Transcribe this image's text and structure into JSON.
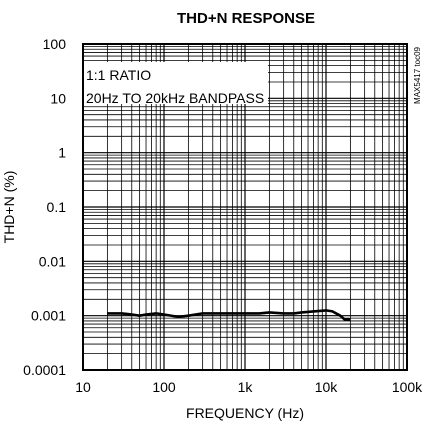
{
  "chart_data": {
    "type": "line",
    "title": "THD+N RESPONSE",
    "xlabel": "FREQUENCY (Hz)",
    "ylabel": "THD+N (%)",
    "x_scale": "log",
    "y_scale": "log",
    "xlim": [
      10,
      100000
    ],
    "ylim": [
      0.0001,
      100
    ],
    "x_tick_labels": [
      "10",
      "100",
      "1k",
      "10k",
      "100k"
    ],
    "y_tick_labels": [
      "100",
      "10",
      "1",
      "0.1",
      "0.01",
      "0.001",
      "0.0001"
    ],
    "annotations": [
      "1:1 RATIO",
      "20Hz TO 20kHz BANDPASS"
    ],
    "figure_code": "MAX5417 toc09",
    "grid": true,
    "series": [
      {
        "color": "#000000",
        "x": [
          20,
          30,
          40,
          50,
          60,
          80,
          100,
          150,
          200,
          300,
          400,
          500,
          700,
          1000,
          1500,
          2000,
          3000,
          4000,
          5000,
          7000,
          10000,
          12000,
          15000,
          17000,
          20000
        ],
        "y": [
          0.0011,
          0.0011,
          0.00105,
          0.001,
          0.00105,
          0.0011,
          0.00105,
          0.00095,
          0.001,
          0.0011,
          0.0011,
          0.0011,
          0.0011,
          0.0011,
          0.0011,
          0.00115,
          0.0011,
          0.0011,
          0.00115,
          0.0012,
          0.00125,
          0.0012,
          0.001,
          0.00085,
          0.00085
        ]
      }
    ]
  }
}
